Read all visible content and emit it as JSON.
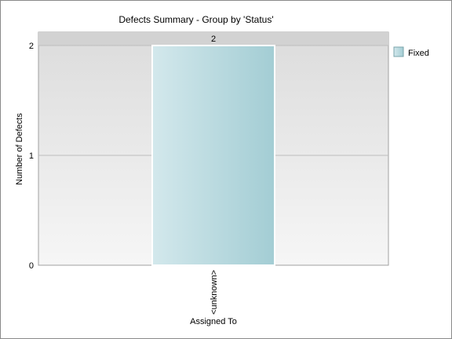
{
  "chart_data": {
    "type": "bar",
    "title": "Defects Summary - Group by 'Status'",
    "xlabel": "Assigned To",
    "ylabel": "Number of Defects",
    "categories": [
      "<unknown>"
    ],
    "series": [
      {
        "name": "Fixed",
        "values": [
          2
        ]
      }
    ],
    "ylim": [
      0,
      2
    ],
    "yticks": [
      0,
      1,
      2
    ],
    "data_labels": [
      "2"
    ],
    "legend_position": "top-right",
    "grid": true,
    "colors": {
      "bar_light": "#d3e8ec",
      "bar_dark": "#a3cdd4",
      "plot_bg_top": "#dcdcdc",
      "plot_bg_bottom": "#f6f6f6",
      "gridline": "#bdbdbd"
    }
  }
}
